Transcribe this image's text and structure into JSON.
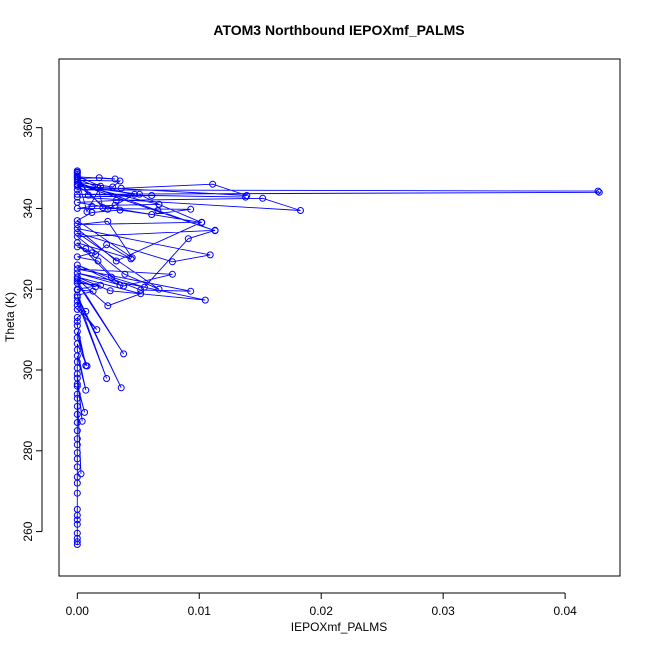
{
  "chart_data": {
    "type": "line",
    "title": "ATOM3 Northbound IEPOXmf_PALMS",
    "xlabel": "IEPOXmf_PALMS",
    "ylabel": "Theta (K)",
    "xlim": [
      -0.0015,
      0.0445
    ],
    "ylim": [
      249,
      377
    ],
    "xticks": [
      0.0,
      0.01,
      0.02,
      0.03,
      0.04
    ],
    "xtick_labels": [
      "0.00",
      "0.01",
      "0.02",
      "0.03",
      "0.04"
    ],
    "yticks": [
      260,
      280,
      300,
      320,
      340,
      360
    ],
    "ytick_labels": [
      "260",
      "280",
      "300",
      "320",
      "340",
      "360"
    ],
    "grid": false,
    "legend": "none",
    "series_color": "#0000ff",
    "markers": "open-circle",
    "series": [
      {
        "x": [
          0,
          0,
          0,
          0,
          0,
          0,
          0,
          0,
          0,
          0,
          0,
          0,
          0,
          0,
          0,
          0,
          0,
          0,
          0,
          0,
          0,
          0.0003,
          0,
          0,
          0.0006,
          0,
          0,
          0.0004,
          0,
          0,
          0,
          0,
          0.0007,
          0,
          0,
          0.0008,
          0,
          0,
          0.0007,
          0,
          0,
          0,
          0.0007,
          0,
          0.0016,
          0,
          0,
          0.0024,
          0,
          0.0036,
          0,
          0.0013,
          0,
          0,
          0.0019,
          0,
          0.0038,
          0,
          0.0015,
          0,
          0.0025,
          0.0052,
          0,
          0.0027,
          0.0105,
          0,
          0.0038,
          0.0078,
          0,
          0.0093,
          0.0052,
          0,
          0.0035,
          0.0017,
          0,
          0.0012,
          0.0007,
          0,
          0.0015,
          0.0024,
          0.0044,
          0,
          0.0028,
          0.0055,
          0.0091,
          0.0113,
          0,
          0.0039,
          0.0067,
          0,
          0.0078,
          0.0109,
          0,
          0.0032,
          0.0102,
          0,
          0.0025,
          0.0045,
          0,
          0.0012,
          0.0035,
          0.0061,
          0.0093,
          0,
          0.0012,
          0.0031,
          0.0067,
          0.0102,
          0,
          0.0032,
          0.0152,
          0.0183,
          0,
          0.0061,
          0.0138,
          0,
          0.0428,
          0.0427,
          0,
          0.0036,
          0.0111,
          0.0139,
          0,
          0.0051,
          0.0067,
          0,
          0.0025,
          0.0047,
          0,
          0.0113,
          0.0066,
          0,
          0.0029,
          0.0035,
          0,
          0.0021,
          0.0017,
          0,
          0.0018,
          0.0031,
          0,
          0.0008,
          0.0019,
          0,
          0.0009,
          0,
          0,
          0,
          0
        ],
        "y": [
          256.8,
          257.5,
          258.3,
          259.6,
          261.8,
          262.9,
          264.0,
          265.5,
          269.5,
          272.0,
          273.5,
          276.0,
          278.0,
          279.5,
          281.5,
          283.0,
          285.0,
          287.0,
          289.0,
          291.0,
          293.0,
          274.3,
          294.0,
          296.0,
          289.5,
          296.5,
          298.0,
          287.3,
          299.0,
          300.5,
          302.0,
          303.5,
          295.0,
          305.0,
          306.5,
          301.0,
          308.0,
          309.5,
          301.1,
          311.0,
          312.0,
          313.0,
          314.5,
          315.0,
          310.0,
          316.0,
          317.0,
          297.9,
          318.0,
          295.6,
          318.5,
          319.5,
          319.8,
          320.0,
          321.0,
          321.5,
          304.0,
          322.0,
          320.6,
          322.5,
          315.9,
          318.9,
          323.0,
          319.6,
          317.3,
          324.0,
          320.8,
          323.7,
          325.0,
          319.5,
          319.8,
          326.0,
          321.0,
          327.0,
          328.0,
          329.0,
          330.0,
          330.5,
          328.6,
          331.0,
          327.5,
          331.5,
          323.0,
          320.5,
          332.5,
          334.6,
          333.0,
          323.7,
          320.0,
          334.0,
          326.8,
          328.5,
          335.0,
          327.0,
          336.6,
          336.0,
          336.8,
          327.8,
          337.0,
          339.0,
          339.6,
          338.5,
          339.8,
          340.0,
          340.5,
          340.8,
          341.0,
          336.5,
          341.5,
          342.0,
          342.5,
          339.5,
          342.8,
          343.2,
          342.8,
          343.5,
          344.0,
          344.3,
          344.6,
          345.0,
          346.0,
          343.2,
          345.5,
          343.5,
          341.0,
          345.8,
          339.8,
          343.5,
          346.0,
          334.5,
          339.5,
          346.5,
          345.3,
          346.8,
          347.0,
          340.2,
          345.2,
          347.4,
          347.6,
          347.3,
          347.8,
          339.2,
          345.5,
          348.0,
          343.3,
          348.4,
          348.8,
          349.0,
          349.3
        ]
      }
    ]
  }
}
